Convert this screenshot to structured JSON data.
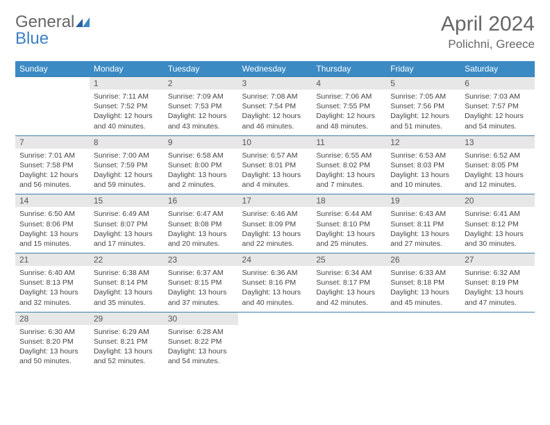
{
  "logo": {
    "part1": "General",
    "part2": "Blue"
  },
  "header": {
    "month": "April 2024",
    "location": "Polichni, Greece"
  },
  "colors": {
    "header_bg": "#3b8ac4",
    "header_text": "#ffffff",
    "daynum_bg": "#e7e7e7",
    "border": "#3b7fa8",
    "logo_blue": "#3b7fc4",
    "text_gray": "#666666"
  },
  "weekdays": [
    "Sunday",
    "Monday",
    "Tuesday",
    "Wednesday",
    "Thursday",
    "Friday",
    "Saturday"
  ],
  "weeks": [
    [
      null,
      {
        "d": "1",
        "sr": "7:11 AM",
        "ss": "7:52 PM",
        "dl": "Daylight: 12 hours and 40 minutes."
      },
      {
        "d": "2",
        "sr": "7:09 AM",
        "ss": "7:53 PM",
        "dl": "Daylight: 12 hours and 43 minutes."
      },
      {
        "d": "3",
        "sr": "7:08 AM",
        "ss": "7:54 PM",
        "dl": "Daylight: 12 hours and 46 minutes."
      },
      {
        "d": "4",
        "sr": "7:06 AM",
        "ss": "7:55 PM",
        "dl": "Daylight: 12 hours and 48 minutes."
      },
      {
        "d": "5",
        "sr": "7:05 AM",
        "ss": "7:56 PM",
        "dl": "Daylight: 12 hours and 51 minutes."
      },
      {
        "d": "6",
        "sr": "7:03 AM",
        "ss": "7:57 PM",
        "dl": "Daylight: 12 hours and 54 minutes."
      }
    ],
    [
      {
        "d": "7",
        "sr": "7:01 AM",
        "ss": "7:58 PM",
        "dl": "Daylight: 12 hours and 56 minutes."
      },
      {
        "d": "8",
        "sr": "7:00 AM",
        "ss": "7:59 PM",
        "dl": "Daylight: 12 hours and 59 minutes."
      },
      {
        "d": "9",
        "sr": "6:58 AM",
        "ss": "8:00 PM",
        "dl": "Daylight: 13 hours and 2 minutes."
      },
      {
        "d": "10",
        "sr": "6:57 AM",
        "ss": "8:01 PM",
        "dl": "Daylight: 13 hours and 4 minutes."
      },
      {
        "d": "11",
        "sr": "6:55 AM",
        "ss": "8:02 PM",
        "dl": "Daylight: 13 hours and 7 minutes."
      },
      {
        "d": "12",
        "sr": "6:53 AM",
        "ss": "8:03 PM",
        "dl": "Daylight: 13 hours and 10 minutes."
      },
      {
        "d": "13",
        "sr": "6:52 AM",
        "ss": "8:05 PM",
        "dl": "Daylight: 13 hours and 12 minutes."
      }
    ],
    [
      {
        "d": "14",
        "sr": "6:50 AM",
        "ss": "8:06 PM",
        "dl": "Daylight: 13 hours and 15 minutes."
      },
      {
        "d": "15",
        "sr": "6:49 AM",
        "ss": "8:07 PM",
        "dl": "Daylight: 13 hours and 17 minutes."
      },
      {
        "d": "16",
        "sr": "6:47 AM",
        "ss": "8:08 PM",
        "dl": "Daylight: 13 hours and 20 minutes."
      },
      {
        "d": "17",
        "sr": "6:46 AM",
        "ss": "8:09 PM",
        "dl": "Daylight: 13 hours and 22 minutes."
      },
      {
        "d": "18",
        "sr": "6:44 AM",
        "ss": "8:10 PM",
        "dl": "Daylight: 13 hours and 25 minutes."
      },
      {
        "d": "19",
        "sr": "6:43 AM",
        "ss": "8:11 PM",
        "dl": "Daylight: 13 hours and 27 minutes."
      },
      {
        "d": "20",
        "sr": "6:41 AM",
        "ss": "8:12 PM",
        "dl": "Daylight: 13 hours and 30 minutes."
      }
    ],
    [
      {
        "d": "21",
        "sr": "6:40 AM",
        "ss": "8:13 PM",
        "dl": "Daylight: 13 hours and 32 minutes."
      },
      {
        "d": "22",
        "sr": "6:38 AM",
        "ss": "8:14 PM",
        "dl": "Daylight: 13 hours and 35 minutes."
      },
      {
        "d": "23",
        "sr": "6:37 AM",
        "ss": "8:15 PM",
        "dl": "Daylight: 13 hours and 37 minutes."
      },
      {
        "d": "24",
        "sr": "6:36 AM",
        "ss": "8:16 PM",
        "dl": "Daylight: 13 hours and 40 minutes."
      },
      {
        "d": "25",
        "sr": "6:34 AM",
        "ss": "8:17 PM",
        "dl": "Daylight: 13 hours and 42 minutes."
      },
      {
        "d": "26",
        "sr": "6:33 AM",
        "ss": "8:18 PM",
        "dl": "Daylight: 13 hours and 45 minutes."
      },
      {
        "d": "27",
        "sr": "6:32 AM",
        "ss": "8:19 PM",
        "dl": "Daylight: 13 hours and 47 minutes."
      }
    ],
    [
      {
        "d": "28",
        "sr": "6:30 AM",
        "ss": "8:20 PM",
        "dl": "Daylight: 13 hours and 50 minutes."
      },
      {
        "d": "29",
        "sr": "6:29 AM",
        "ss": "8:21 PM",
        "dl": "Daylight: 13 hours and 52 minutes."
      },
      {
        "d": "30",
        "sr": "6:28 AM",
        "ss": "8:22 PM",
        "dl": "Daylight: 13 hours and 54 minutes."
      },
      null,
      null,
      null,
      null
    ]
  ]
}
